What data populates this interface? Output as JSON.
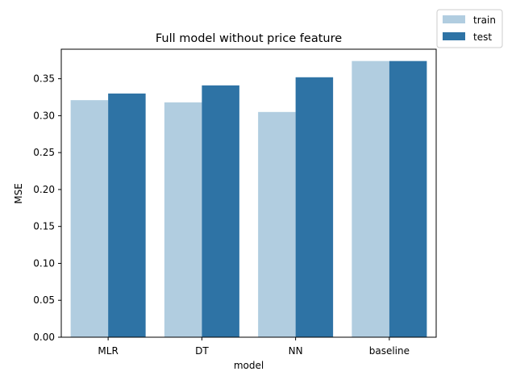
{
  "chart_data": {
    "type": "bar",
    "title": "Full model without price feature",
    "xlabel": "model",
    "ylabel": "MSE",
    "categories": [
      "MLR",
      "DT",
      "NN",
      "baseline"
    ],
    "series": [
      {
        "name": "train",
        "color": "#b1cde0",
        "values": [
          0.321,
          0.318,
          0.305,
          0.374
        ]
      },
      {
        "name": "test",
        "color": "#2e73a5",
        "values": [
          0.33,
          0.341,
          0.352,
          0.374
        ]
      }
    ],
    "ylim": [
      0,
      0.39
    ],
    "yticks": [
      0.0,
      0.05,
      0.1,
      0.15,
      0.2,
      0.25,
      0.3,
      0.35
    ],
    "ytick_labels": [
      "0.00",
      "0.05",
      "0.10",
      "0.15",
      "0.20",
      "0.25",
      "0.30",
      "0.35"
    ],
    "grid": false,
    "legend_position": "top-right, outside plot"
  }
}
